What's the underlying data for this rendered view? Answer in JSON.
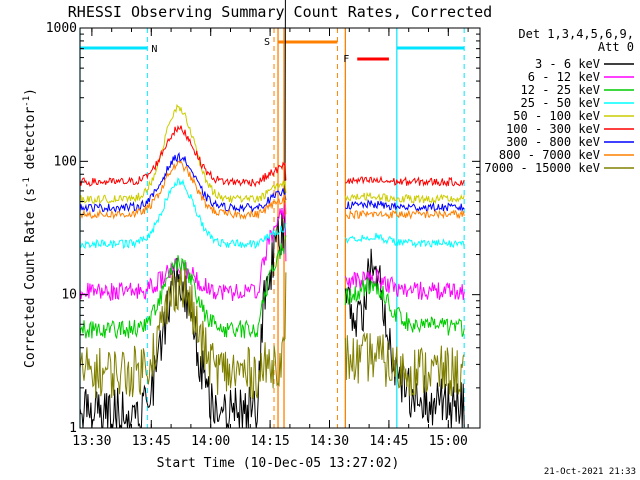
{
  "chart_data": {
    "type": "line",
    "title": "RHESSI Observing Summary Count Rates, Corrected",
    "xlabel": "Start Time (10-Dec-05 13:27:02)",
    "ylabel": "Corrected Count Rate (s",
    "ylabel_sup1": "-1",
    "ylabel_mid": " detector",
    "ylabel_sup2": "-1",
    "ylabel_end": ")",
    "y_scale": "log",
    "ylim": [
      1,
      1000
    ],
    "xlim": [
      "13:27",
      "15:08"
    ],
    "x_ticks": [
      "13:30",
      "13:45",
      "14:00",
      "14:15",
      "14:30",
      "14:45",
      "15:00"
    ],
    "y_ticks": [
      "1",
      "10",
      "100",
      "1000"
    ],
    "timestamp": "21-Oct-2021 21:33",
    "legend": {
      "header1": "Det 1,3,4,5,6,9,",
      "header2": "Att 0",
      "placement": "top-right"
    },
    "markers": {
      "night_label": "N",
      "saa_label": "S",
      "flare_label": "F",
      "night_intervals": [
        [
          "13:27",
          "13:44"
        ],
        [
          "14:47",
          "15:04"
        ]
      ],
      "saa_interval": [
        "14:17",
        "14:32"
      ],
      "flare_interval": [
        "14:37",
        "14:45"
      ],
      "data_gap": [
        "14:19",
        "14:34"
      ],
      "night_color": "#00e5ff",
      "saa_color": "#ff8000",
      "flare_color": "#ff0000"
    },
    "series": [
      {
        "name": "3 - 6 keV",
        "color": "#000000",
        "base": 1.3,
        "peak": 13,
        "post": 16
      },
      {
        "name": "6 - 12 keV",
        "color": "#ff00ff",
        "base": 10.5,
        "peak": 16,
        "post": 14
      },
      {
        "name": "12 - 25 keV",
        "color": "#00cc00",
        "base": 5.5,
        "peak": 17,
        "post": 13
      },
      {
        "name": "25 - 50 keV",
        "color": "#00ffff",
        "base": 24,
        "peak": 70,
        "post": 28
      },
      {
        "name": "50 - 100 keV",
        "color": "#cccc00",
        "base": 52,
        "peak": 250,
        "post": 55
      },
      {
        "name": "100 - 300 keV",
        "color": "#ff0000",
        "base": 70,
        "peak": 175,
        "post": 72
      },
      {
        "name": "300 - 800 keV",
        "color": "#0000ff",
        "base": 45,
        "peak": 108,
        "post": 48
      },
      {
        "name": "800 - 7000 keV",
        "color": "#ff8000",
        "base": 40,
        "peak": 95,
        "post": 40
      },
      {
        "name": "7000 - 15000 keV",
        "color": "#808000",
        "base": 2.6,
        "peak": 12,
        "post": 3.5
      }
    ]
  }
}
